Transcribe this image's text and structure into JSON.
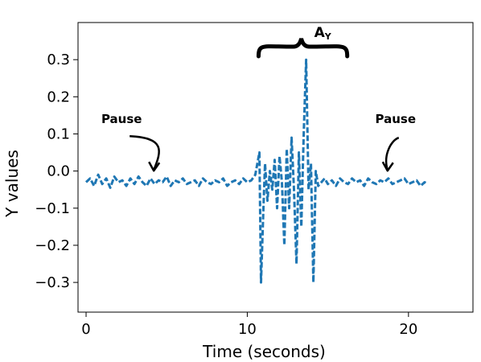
{
  "chart_data": {
    "type": "line",
    "xlabel": "Time (seconds)",
    "ylabel": "Y values",
    "xlim": [
      -0.5,
      24
    ],
    "ylim": [
      -0.38,
      0.4
    ],
    "xticks": [
      0,
      10,
      20
    ],
    "xtick_labels": [
      "0",
      "10",
      "20"
    ],
    "yticks": [
      0.3,
      0.2,
      0.1,
      0.0,
      -0.1,
      -0.2,
      -0.3
    ],
    "ytick_labels": [
      "0.3",
      "0.2",
      "0.1",
      "0.0",
      "−0.1",
      "−0.2",
      "−0.3"
    ],
    "grid": false,
    "series": [
      {
        "line_style": "dashed",
        "color": "#1f77b4",
        "x": [
          0.0,
          0.25,
          0.5,
          0.75,
          1.0,
          1.25,
          1.5,
          1.75,
          2.0,
          2.25,
          2.5,
          2.75,
          3.0,
          3.25,
          3.5,
          3.75,
          4.0,
          4.25,
          4.5,
          4.75,
          5.0,
          5.25,
          5.5,
          5.75,
          6.0,
          6.25,
          6.5,
          6.75,
          7.0,
          7.25,
          7.5,
          7.75,
          8.0,
          8.25,
          8.5,
          8.75,
          9.0,
          9.25,
          9.5,
          9.75,
          10.0,
          10.25,
          10.5,
          10.75,
          10.85,
          11.0,
          11.1,
          11.25,
          11.4,
          11.55,
          11.7,
          11.85,
          12.0,
          12.15,
          12.3,
          12.45,
          12.6,
          12.75,
          12.9,
          13.05,
          13.2,
          13.35,
          13.5,
          13.65,
          13.8,
          13.95,
          14.1,
          14.25,
          14.4,
          14.6,
          14.8,
          15.0,
          15.25,
          15.5,
          15.75,
          16.0,
          16.25,
          16.5,
          16.75,
          17.0,
          17.25,
          17.5,
          17.75,
          18.0,
          18.25,
          18.5,
          18.75,
          19.0,
          19.25,
          19.5,
          19.75,
          20.0,
          20.25,
          20.5,
          20.75,
          21.0,
          21.2
        ],
        "y": [
          -0.03,
          -0.02,
          -0.04,
          -0.01,
          -0.035,
          -0.02,
          -0.045,
          -0.015,
          -0.03,
          -0.025,
          -0.04,
          -0.02,
          -0.035,
          -0.015,
          -0.03,
          -0.04,
          -0.02,
          -0.035,
          -0.025,
          -0.03,
          -0.015,
          -0.04,
          -0.025,
          -0.03,
          -0.02,
          -0.035,
          -0.03,
          -0.025,
          -0.04,
          -0.02,
          -0.03,
          -0.035,
          -0.025,
          -0.03,
          -0.02,
          -0.04,
          -0.03,
          -0.025,
          -0.035,
          -0.02,
          -0.03,
          -0.025,
          -0.01,
          0.05,
          -0.3,
          -0.1,
          0.02,
          -0.08,
          0.0,
          -0.05,
          0.03,
          -0.1,
          0.04,
          -0.03,
          -0.2,
          0.06,
          -0.1,
          0.09,
          -0.05,
          -0.25,
          0.05,
          -0.15,
          0.1,
          0.3,
          -0.05,
          0.02,
          -0.3,
          0.0,
          -0.04,
          -0.03,
          -0.02,
          -0.035,
          -0.025,
          -0.04,
          -0.02,
          -0.03,
          -0.035,
          -0.02,
          -0.03,
          -0.025,
          -0.04,
          -0.02,
          -0.03,
          -0.035,
          -0.025,
          -0.03,
          -0.02,
          -0.035,
          -0.03,
          -0.025,
          -0.02,
          -0.035,
          -0.03,
          -0.025,
          -0.04,
          -0.03,
          -0.035
        ]
      }
    ],
    "annotations": [
      {
        "text": "Pause",
        "near_x": 4.2,
        "near_y": -0.01
      },
      {
        "text": "Pause",
        "near_x": 18.7,
        "near_y": -0.01
      },
      {
        "text_main": "A",
        "text_sub": "Y",
        "spans_x": [
          10.5,
          16.5
        ]
      }
    ]
  }
}
